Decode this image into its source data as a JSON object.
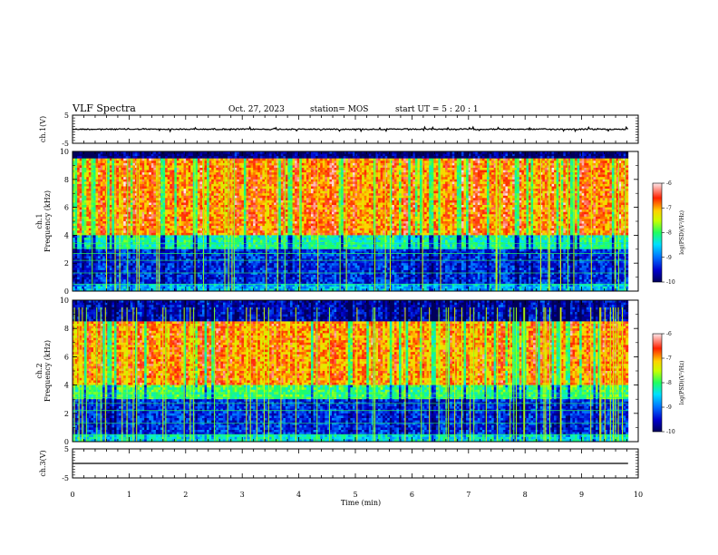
{
  "header": {
    "title": "VLF Spectra",
    "date": "Oct. 27, 2023",
    "station": "station= MOS",
    "start": "start  UT =  5 : 20 : 1"
  },
  "colors": {
    "colormap": [
      "#00005a",
      "#0000cc",
      "#0070ff",
      "#00e0ff",
      "#20ff60",
      "#c8ff00",
      "#ffd200",
      "#ff2200",
      "#ffe8ec"
    ]
  },
  "chart_data": [
    {
      "type": "line",
      "name": "channel-1-waveform",
      "ylabel": "ch.1(V)",
      "ylim": [
        -5,
        5
      ],
      "yticks": [
        "5",
        "-5"
      ],
      "xlim": [
        0,
        10
      ],
      "baseline": 0,
      "description_values": "near-zero trace with small noise bursts"
    },
    {
      "type": "heatmap",
      "name": "channel-1-spectrogram",
      "ylabel": "ch.1\nFrequency (kHz)",
      "ylim": [
        0,
        10
      ],
      "yticks": [
        "0",
        "2",
        "4",
        "6",
        "8",
        "10"
      ],
      "xlim": [
        0,
        10
      ],
      "colorbar": {
        "label": "log(PSD)(V²/Hz)",
        "range": [
          -10,
          -6
        ],
        "ticks": [
          "-6",
          "-7",
          "-8",
          "-9",
          "-10"
        ]
      },
      "bands": [
        {
          "f_low": 0.0,
          "f_high": 0.5,
          "level": -8.6
        },
        {
          "f_low": 0.5,
          "f_high": 3.0,
          "level": -9.3
        },
        {
          "f_low": 3.0,
          "f_high": 4.0,
          "level": -8.2
        },
        {
          "f_low": 4.0,
          "f_high": 9.5,
          "level": -6.7
        },
        {
          "f_low": 9.5,
          "f_high": 10.0,
          "level": -9.8
        }
      ]
    },
    {
      "type": "heatmap",
      "name": "channel-2-spectrogram",
      "ylabel": "ch.2\nFrequency (kHz)",
      "ylim": [
        0,
        10
      ],
      "yticks": [
        "0",
        "2",
        "4",
        "6",
        "8",
        "10"
      ],
      "xlim": [
        0,
        10
      ],
      "colorbar": {
        "label": "log(PSD)(V²/Hz)",
        "range": [
          -10,
          -6
        ],
        "ticks": [
          "-6",
          "-7",
          "-8",
          "-9",
          "-10"
        ]
      },
      "bands": [
        {
          "f_low": 0.0,
          "f_high": 0.5,
          "level": -8.4
        },
        {
          "f_low": 0.5,
          "f_high": 3.0,
          "level": -9.3
        },
        {
          "f_low": 3.0,
          "f_high": 4.0,
          "level": -8.0
        },
        {
          "f_low": 4.0,
          "f_high": 8.5,
          "level": -6.8
        },
        {
          "f_low": 8.5,
          "f_high": 10.0,
          "level": -9.6
        }
      ]
    },
    {
      "type": "line",
      "name": "channel-3-waveform",
      "ylabel": "ch.3(V)",
      "ylim": [
        -5,
        5
      ],
      "yticks": [
        "5",
        "-5"
      ],
      "xlim": [
        0,
        10
      ],
      "baseline": 0
    }
  ],
  "xaxis": {
    "label": "Time (min)",
    "ticks": [
      "0",
      "1",
      "2",
      "3",
      "4",
      "5",
      "6",
      "7",
      "8",
      "9",
      "10"
    ]
  }
}
